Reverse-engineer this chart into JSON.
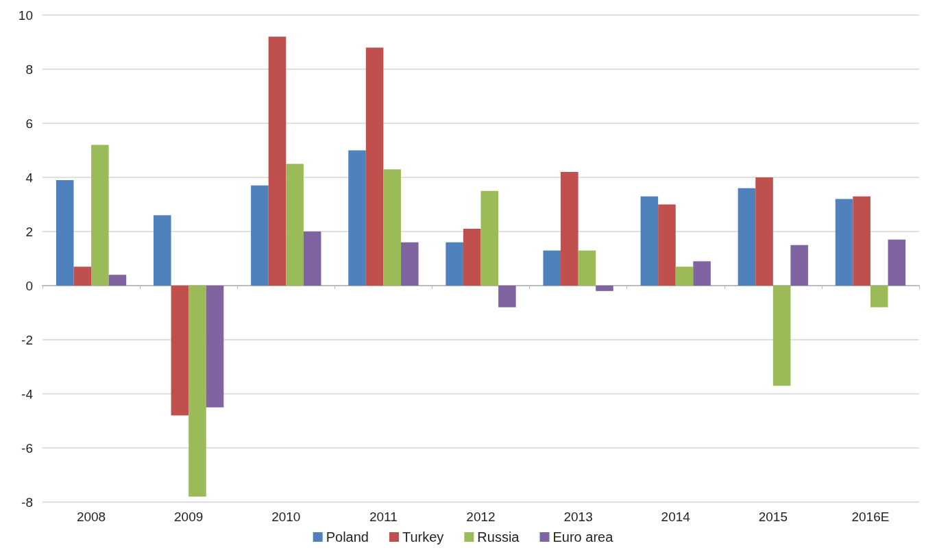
{
  "chart_data": {
    "type": "bar",
    "categories": [
      "2008",
      "2009",
      "2010",
      "2011",
      "2012",
      "2013",
      "2014",
      "2015",
      "2016E"
    ],
    "series": [
      {
        "name": "Poland",
        "color": "#4f81bd",
        "values": [
          3.9,
          2.6,
          3.7,
          5.0,
          1.6,
          1.3,
          3.3,
          3.6,
          3.2
        ]
      },
      {
        "name": "Turkey",
        "color": "#c0504d",
        "values": [
          0.7,
          -4.8,
          9.2,
          8.8,
          2.1,
          4.2,
          3.0,
          4.0,
          3.3
        ]
      },
      {
        "name": "Russia",
        "color": "#9bbb59",
        "values": [
          5.2,
          -7.8,
          4.5,
          4.3,
          3.5,
          1.3,
          0.7,
          -3.7,
          -0.8
        ]
      },
      {
        "name": "Euro area",
        "color": "#8064a2",
        "values": [
          0.4,
          -4.5,
          2.0,
          1.6,
          -0.8,
          -0.2,
          0.9,
          1.5,
          1.7
        ]
      }
    ],
    "ylim": [
      -8,
      10
    ],
    "yticks": [
      -8,
      -6,
      -4,
      -2,
      0,
      2,
      4,
      6,
      8,
      10
    ],
    "grid": "y",
    "legend": "bottom"
  }
}
